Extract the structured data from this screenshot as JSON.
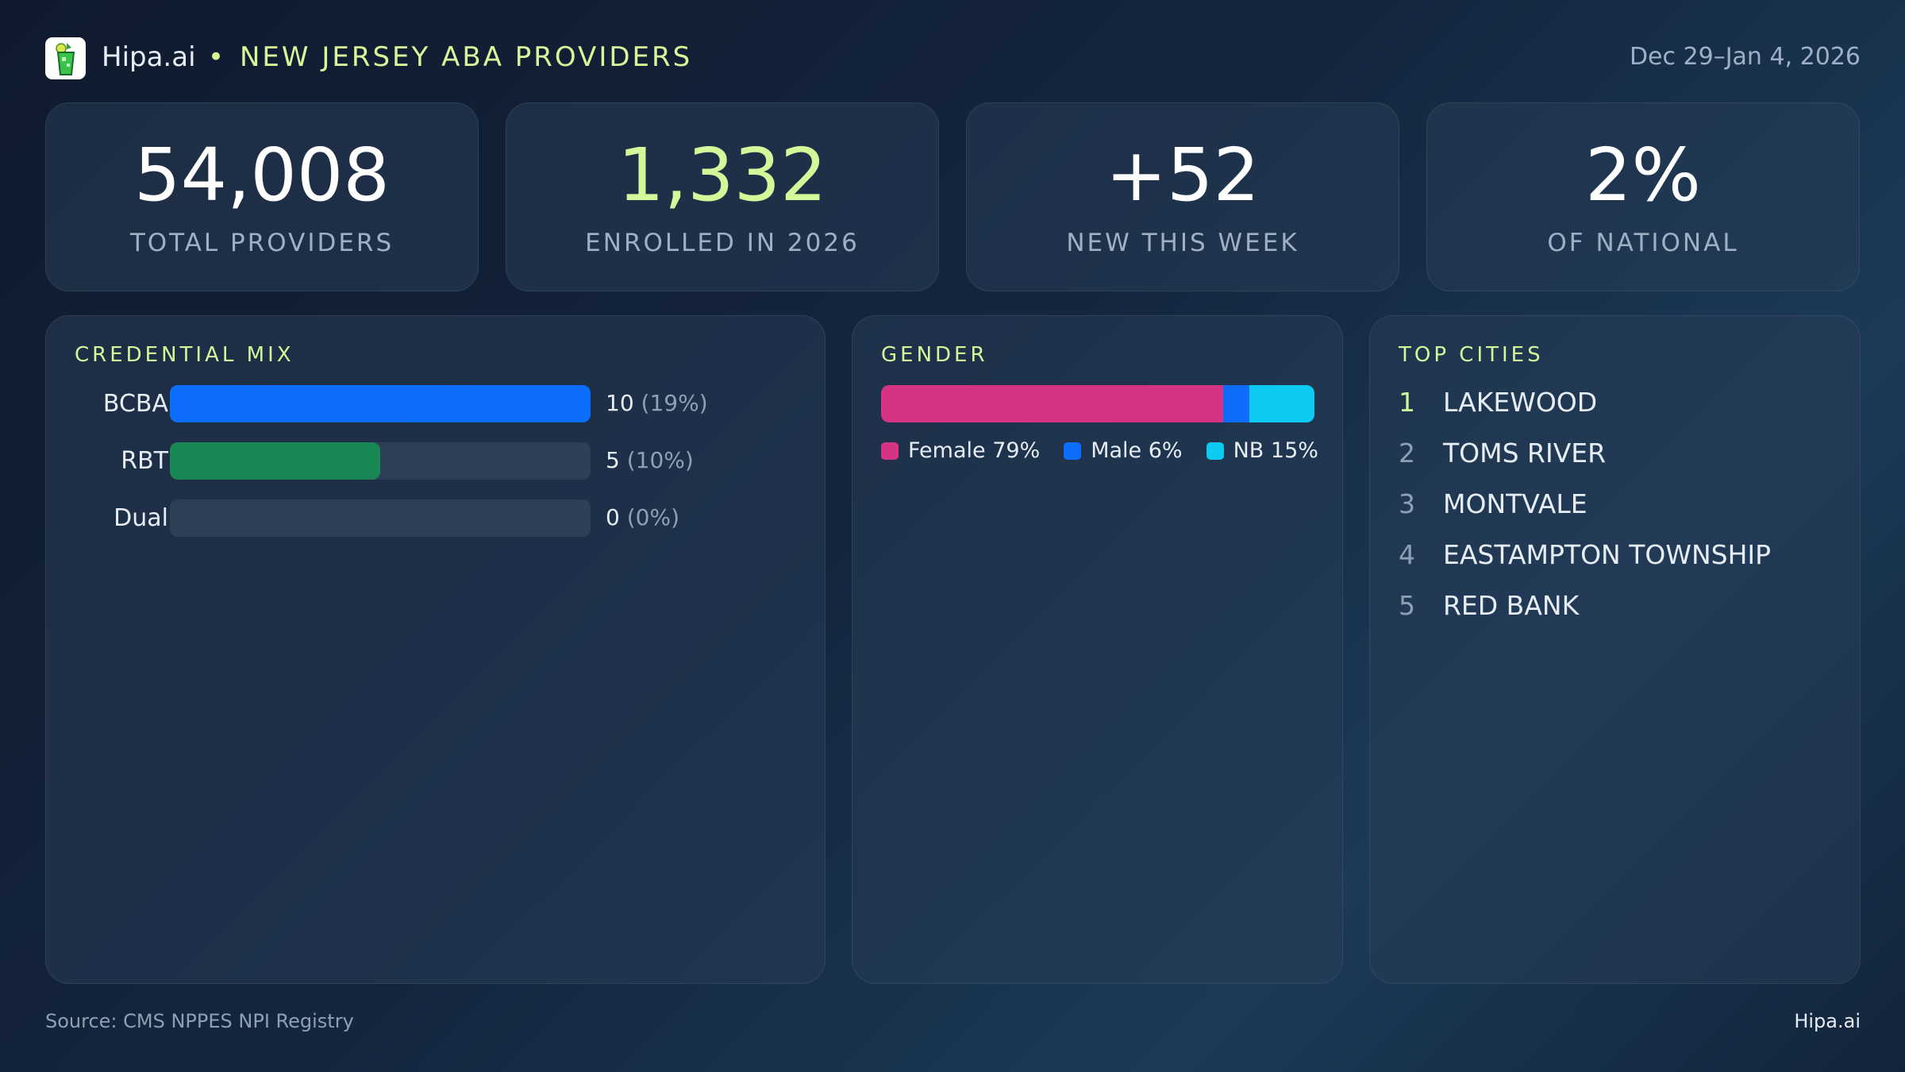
{
  "header": {
    "brand": "Hipa.ai",
    "separator": "•",
    "title": "NEW JERSEY ABA PROVIDERS",
    "date_range": "Dec 29–Jan 4, 2026",
    "logo_icon": "mojito-glass-icon"
  },
  "stats": [
    {
      "value": "54,008",
      "label": "TOTAL PROVIDERS",
      "color": "#ffffff"
    },
    {
      "value": "1,332",
      "label": "ENROLLED IN 2026",
      "color": "#d4f79a"
    },
    {
      "value": "+52",
      "label": "NEW THIS WEEK",
      "color": "#ffffff"
    },
    {
      "value": "2%",
      "label": "OF NATIONAL",
      "color": "#ffffff"
    }
  ],
  "credential_mix": {
    "title": "CREDENTIAL MIX",
    "rows": [
      {
        "label": "BCBA",
        "count": "10",
        "pct": "(19%)",
        "fill": 1.0,
        "color": "#0d6efd"
      },
      {
        "label": "RBT",
        "count": "5",
        "pct": "(10%)",
        "fill": 0.5,
        "color": "#198754"
      },
      {
        "label": "Dual",
        "count": "0",
        "pct": "(0%)",
        "fill": 0,
        "color": "#6c757d"
      }
    ]
  },
  "gender": {
    "title": "GENDER",
    "segments": [
      {
        "label": "Female 79%",
        "percent": 79,
        "color": "#d63384"
      },
      {
        "label": "Male 6%",
        "percent": 6,
        "color": "#0d6efd"
      },
      {
        "label": "NB 15%",
        "percent": 15,
        "color": "#0dcaf0"
      }
    ]
  },
  "top_cities": {
    "title": "TOP CITIES",
    "items": [
      {
        "rank": "1",
        "name": "LAKEWOOD"
      },
      {
        "rank": "2",
        "name": "TOMS RIVER"
      },
      {
        "rank": "3",
        "name": "MONTVALE"
      },
      {
        "rank": "4",
        "name": "EASTAMPTON TOWNSHIP"
      },
      {
        "rank": "5",
        "name": "RED BANK"
      }
    ],
    "accent": "#d4f79a"
  },
  "footer": {
    "source": "Source: CMS NPPES NPI Registry",
    "brand": "Hipa.ai"
  }
}
